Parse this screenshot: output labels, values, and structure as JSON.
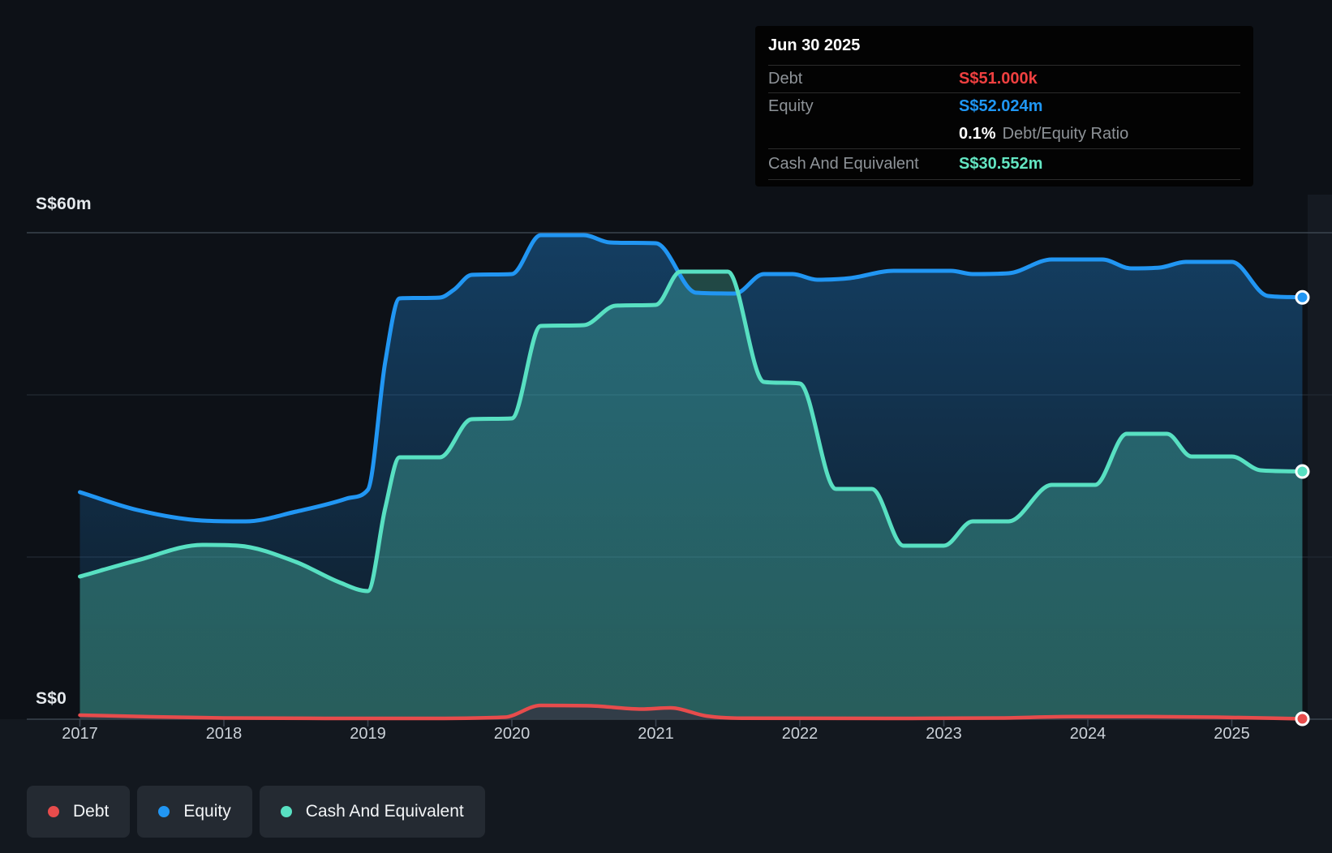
{
  "y_axis": {
    "top_label": "S$60m",
    "zero_label": "S$0",
    "max_m": 60,
    "min_m": 0
  },
  "x_axis": {
    "years": [
      "2017",
      "2018",
      "2019",
      "2020",
      "2021",
      "2022",
      "2023",
      "2024",
      "2025"
    ]
  },
  "tooltip": {
    "title": "Jun 30 2025",
    "debt_label": "Debt",
    "debt_value": "S$51.000k",
    "equity_label": "Equity",
    "equity_value": "S$52.024m",
    "ratio_value": "0.1%",
    "ratio_label": "Debt/Equity Ratio",
    "cash_label": "Cash And Equivalent",
    "cash_value": "S$30.552m"
  },
  "legend": [
    {
      "label": "Debt",
      "color": "#E74C4C"
    },
    {
      "label": "Equity",
      "color": "#2196F3"
    },
    {
      "label": "Cash And Equivalent",
      "color": "#58E0C2"
    }
  ],
  "colors": {
    "debt_line": "#E74C4C",
    "equity_line": "#2196F3",
    "cash_line": "#58E0C2",
    "debt_value_text": "#EF4040",
    "equity_value_text": "#1F97F4",
    "cash_value_text": "#63E6C2",
    "equity_fill_top": "rgba(33,150,243,0.34)",
    "equity_fill_bottom": "rgba(33,150,243,0.07)",
    "cash_fill_top": "rgba(88,224,194,0.26)",
    "cash_fill_bottom": "rgba(88,224,194,0.34)",
    "debt_fill": "rgba(52,58,70,0.90)",
    "grid_major": "#3B444F",
    "grid_minor": "#222933",
    "marker_ring": "#FFFFFF",
    "right_strip": "#151A22"
  },
  "chart_data": {
    "type": "area",
    "title": "Debt / Equity / Cash history",
    "x_unit": "year",
    "x_range": [
      2017.0,
      2025.49
    ],
    "ylim_m": [
      0,
      60
    ],
    "gridlines_m": [
      60,
      40,
      20,
      0
    ],
    "legend_position": "bottom-left",
    "last_point_date": "Jun 30 2025",
    "series": [
      {
        "name": "Equity",
        "unit": "S$ millions",
        "points": [
          [
            2017.0,
            28.0
          ],
          [
            2017.4,
            25.8
          ],
          [
            2017.85,
            24.5
          ],
          [
            2018.15,
            24.4
          ],
          [
            2018.5,
            25.6
          ],
          [
            2018.85,
            27.2
          ],
          [
            2019.0,
            28.3
          ],
          [
            2019.12,
            44.0
          ],
          [
            2019.22,
            51.9
          ],
          [
            2019.5,
            52.0
          ],
          [
            2019.6,
            53.0
          ],
          [
            2019.72,
            54.8
          ],
          [
            2020.0,
            54.9
          ],
          [
            2020.2,
            59.7
          ],
          [
            2020.5,
            59.7
          ],
          [
            2020.68,
            58.8
          ],
          [
            2021.0,
            58.7
          ],
          [
            2021.28,
            52.6
          ],
          [
            2021.55,
            52.5
          ],
          [
            2021.75,
            54.9
          ],
          [
            2021.95,
            54.9
          ],
          [
            2022.12,
            54.2
          ],
          [
            2022.35,
            54.4
          ],
          [
            2022.65,
            55.3
          ],
          [
            2023.05,
            55.3
          ],
          [
            2023.2,
            54.9
          ],
          [
            2023.45,
            55.0
          ],
          [
            2023.75,
            56.7
          ],
          [
            2024.1,
            56.7
          ],
          [
            2024.3,
            55.6
          ],
          [
            2024.5,
            55.7
          ],
          [
            2024.68,
            56.4
          ],
          [
            2025.0,
            56.4
          ],
          [
            2025.25,
            52.2
          ],
          [
            2025.49,
            52.024
          ]
        ]
      },
      {
        "name": "Cash And Equivalent",
        "unit": "S$ millions",
        "points": [
          [
            2017.0,
            17.6
          ],
          [
            2017.4,
            19.6
          ],
          [
            2017.85,
            21.5
          ],
          [
            2018.1,
            21.4
          ],
          [
            2018.5,
            19.4
          ],
          [
            2018.8,
            16.9
          ],
          [
            2019.0,
            15.8
          ],
          [
            2019.12,
            26.0
          ],
          [
            2019.22,
            32.3
          ],
          [
            2019.5,
            32.3
          ],
          [
            2019.72,
            37.0
          ],
          [
            2020.0,
            37.1
          ],
          [
            2020.2,
            48.5
          ],
          [
            2020.5,
            48.6
          ],
          [
            2020.72,
            51.0
          ],
          [
            2021.0,
            51.1
          ],
          [
            2021.17,
            55.2
          ],
          [
            2021.5,
            55.2
          ],
          [
            2021.75,
            41.6
          ],
          [
            2022.0,
            41.4
          ],
          [
            2022.25,
            28.4
          ],
          [
            2022.5,
            28.4
          ],
          [
            2022.72,
            21.4
          ],
          [
            2023.0,
            21.4
          ],
          [
            2023.2,
            24.4
          ],
          [
            2023.45,
            24.4
          ],
          [
            2023.75,
            28.9
          ],
          [
            2024.05,
            28.9
          ],
          [
            2024.27,
            35.2
          ],
          [
            2024.55,
            35.2
          ],
          [
            2024.72,
            32.4
          ],
          [
            2025.0,
            32.4
          ],
          [
            2025.2,
            30.7
          ],
          [
            2025.49,
            30.552
          ]
        ]
      },
      {
        "name": "Debt",
        "unit": "S$ millions",
        "points": [
          [
            2017.0,
            0.5
          ],
          [
            2017.5,
            0.3
          ],
          [
            2018.0,
            0.15
          ],
          [
            2018.7,
            0.1
          ],
          [
            2019.4,
            0.1
          ],
          [
            2019.95,
            0.25
          ],
          [
            2020.2,
            1.7
          ],
          [
            2020.55,
            1.65
          ],
          [
            2020.9,
            1.25
          ],
          [
            2021.1,
            1.4
          ],
          [
            2021.35,
            0.4
          ],
          [
            2021.6,
            0.12
          ],
          [
            2022.6,
            0.1
          ],
          [
            2023.4,
            0.15
          ],
          [
            2023.9,
            0.32
          ],
          [
            2024.4,
            0.32
          ],
          [
            2024.9,
            0.25
          ],
          [
            2025.49,
            0.051
          ]
        ]
      }
    ]
  }
}
